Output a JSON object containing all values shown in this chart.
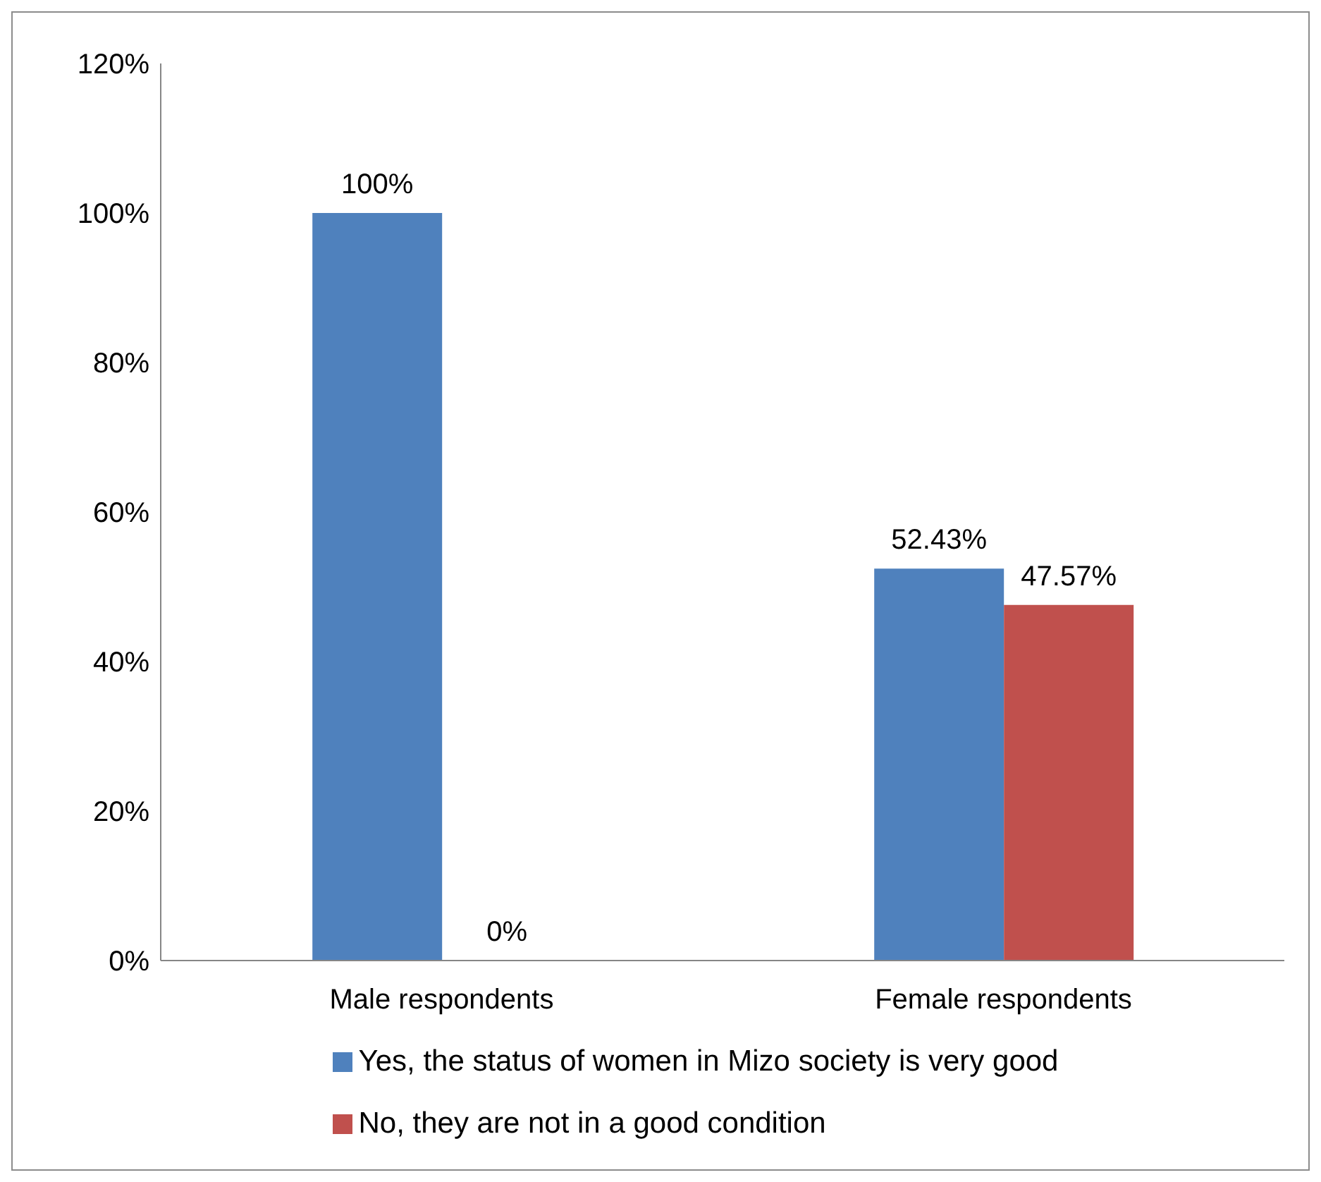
{
  "chart_data": {
    "type": "bar",
    "categories": [
      "Male respondents",
      "Female respondents"
    ],
    "series": [
      {
        "name": "Yes, the status of women in Mizo society is very good",
        "color": "#4f81bd",
        "values": [
          100,
          52.43
        ],
        "value_labels": [
          "100%",
          "52.43%"
        ]
      },
      {
        "name": "No, they are not in a good condition",
        "color": "#c0504d",
        "values": [
          0,
          47.57
        ],
        "value_labels": [
          "0%",
          "47.57%"
        ]
      }
    ],
    "ylim": [
      0,
      120
    ],
    "yticks": [
      {
        "value": 0,
        "label": "0%"
      },
      {
        "value": 20,
        "label": "20%"
      },
      {
        "value": 40,
        "label": "40%"
      },
      {
        "value": 60,
        "label": "60%"
      },
      {
        "value": 80,
        "label": "80%"
      },
      {
        "value": 100,
        "label": "100%"
      },
      {
        "value": 120,
        "label": "120%"
      }
    ],
    "grid": false,
    "legend": "bottom"
  }
}
